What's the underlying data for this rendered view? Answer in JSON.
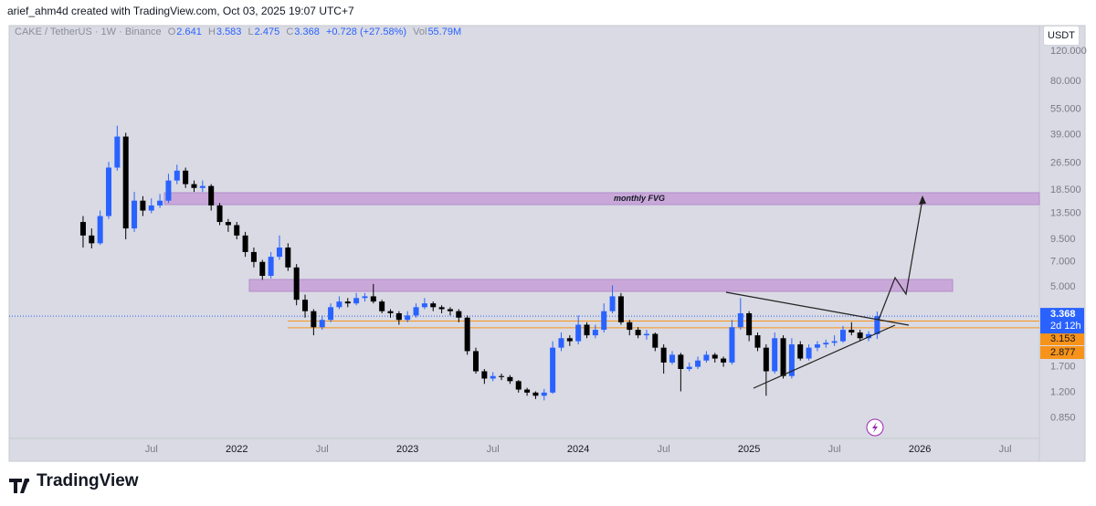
{
  "header": {
    "text": "arief_ahm4d created with TradingView.com, Oct 03, 2025 19:07 UTC+7"
  },
  "footer": {
    "brand": "TradingView"
  },
  "chart_data": {
    "type": "candlestick",
    "title": "CAKE / TetherUS · 1W · Binance",
    "currency": "USDT",
    "legend_labels": [
      "O",
      "H",
      "L",
      "C"
    ],
    "change": "+0.728 (+27.58%)",
    "volume_label": "Vol",
    "volume": "55.79M",
    "countdown": "2d 12h",
    "levels": [
      3.153,
      2.877
    ],
    "level_color": "#f7931a",
    "annotations": [
      "monthly FVG"
    ],
    "up_color": "#2962ff",
    "down_color": "#000000",
    "log_scale": true,
    "grid": false,
    "xlim": [
      2020.667,
      2026.7
    ],
    "xticks": [
      {
        "value": 2021.5,
        "label": "Jul"
      },
      2022,
      {
        "value": 2022.5,
        "label": "Jul"
      },
      2023,
      {
        "value": 2023.5,
        "label": "Jul"
      },
      2024,
      {
        "value": 2024.5,
        "label": "Jul"
      },
      2025,
      {
        "value": 2025.5,
        "label": "Jul"
      },
      2026,
      {
        "value": 2026.5,
        "label": "Jul"
      }
    ],
    "ylim": [
      0.475,
      170
    ],
    "yticks": [
      {
        "value": 120,
        "label": "120.000"
      },
      {
        "value": 80,
        "label": "80.000"
      },
      {
        "value": 55,
        "label": "55.000"
      },
      {
        "value": 39,
        "label": "39.000"
      },
      {
        "value": 26.5,
        "label": "26.500"
      },
      {
        "value": 18.5,
        "label": "18.500"
      },
      {
        "value": 13.5,
        "label": "13.500"
      },
      {
        "value": 9.5,
        "label": "9.500"
      },
      {
        "value": 7,
        "label": "7.000"
      },
      {
        "value": 5,
        "label": "5.000"
      },
      {
        "value": 1.7,
        "label": "1.700"
      },
      {
        "value": 1.2,
        "label": "1.200"
      },
      {
        "value": 0.85,
        "label": "0.850"
      }
    ],
    "x": [
      2021.1,
      2021.15,
      2021.2,
      2021.25,
      2021.3,
      2021.35,
      2021.4,
      2021.45,
      2021.5,
      2021.55,
      2021.6,
      2021.65,
      2021.7,
      2021.75,
      2021.8,
      2021.85,
      2021.9,
      2021.95,
      2022.0,
      2022.05,
      2022.1,
      2022.15,
      2022.2,
      2022.25,
      2022.3,
      2022.35,
      2022.4,
      2022.45,
      2022.5,
      2022.55,
      2022.6,
      2022.65,
      2022.7,
      2022.75,
      2022.8,
      2022.85,
      2022.9,
      2022.95,
      2023.0,
      2023.05,
      2023.1,
      2023.15,
      2023.2,
      2023.25,
      2023.3,
      2023.35,
      2023.4,
      2023.45,
      2023.5,
      2023.55,
      2023.6,
      2023.65,
      2023.7,
      2023.75,
      2023.8,
      2023.85,
      2023.9,
      2023.95,
      2024.0,
      2024.05,
      2024.1,
      2024.15,
      2024.2,
      2024.25,
      2024.3,
      2024.35,
      2024.4,
      2024.45,
      2024.5,
      2024.55,
      2024.6,
      2024.65,
      2024.7,
      2024.75,
      2024.8,
      2024.85,
      2024.9,
      2024.95,
      2025.0,
      2025.05,
      2025.1,
      2025.15,
      2025.2,
      2025.25,
      2025.3,
      2025.35,
      2025.4,
      2025.45,
      2025.5,
      2025.55,
      2025.6,
      2025.65,
      2025.7,
      2025.75
    ],
    "open": [
      12,
      10,
      9,
      13,
      25,
      38,
      11,
      16,
      14,
      15,
      16,
      21,
      24,
      20,
      19,
      19.5,
      15,
      12,
      11.5,
      10,
      8,
      7,
      5.8,
      7.5,
      8.5,
      6.5,
      4.2,
      3.6,
      2.9,
      3.2,
      3.8,
      4.1,
      4.0,
      4.3,
      4.4,
      4.1,
      3.6,
      3.5,
      3.2,
      3.4,
      3.8,
      4.0,
      3.8,
      3.7,
      3.6,
      3.3,
      2.1,
      1.6,
      1.45,
      1.5,
      1.48,
      1.4,
      1.25,
      1.2,
      1.15,
      1.2,
      2.2,
      2.5,
      2.4,
      3.0,
      2.6,
      2.8,
      3.6,
      4.4,
      3.1,
      2.8,
      2.6,
      2.65,
      2.2,
      1.8,
      2.0,
      1.65,
      1.7,
      1.85,
      2.0,
      1.9,
      1.8,
      2.9,
      3.5,
      2.6,
      2.2,
      1.6,
      2.5,
      1.5,
      2.3,
      1.9,
      2.2,
      2.3,
      2.35,
      2.4,
      2.8,
      2.7,
      2.5,
      2.641
    ],
    "high": [
      13,
      11,
      14,
      27,
      44,
      40,
      18,
      17,
      16.5,
      17.5,
      23,
      26,
      25,
      21,
      21,
      20,
      15.5,
      12.5,
      12,
      10.5,
      8.5,
      7.2,
      8,
      10,
      9,
      6.8,
      4.5,
      3.7,
      3.4,
      4.0,
      4.4,
      4.3,
      4.6,
      4.6,
      5.2,
      4.2,
      3.7,
      3.6,
      3.6,
      4.0,
      4.3,
      4.1,
      3.9,
      3.8,
      3.7,
      3.4,
      2.2,
      1.65,
      1.58,
      1.55,
      1.52,
      1.42,
      1.28,
      1.22,
      1.26,
      2.4,
      2.7,
      2.6,
      3.4,
      3.1,
      3.0,
      4.0,
      5.1,
      4.6,
      3.2,
      2.9,
      2.8,
      2.7,
      2.3,
      2.1,
      2.05,
      1.8,
      1.95,
      2.1,
      2.05,
      1.95,
      3.2,
      4.3,
      3.6,
      2.7,
      2.3,
      2.7,
      2.6,
      2.5,
      2.4,
      2.3,
      2.4,
      2.45,
      2.6,
      2.95,
      3.1,
      2.8,
      2.75,
      3.583
    ],
    "low": [
      8.5,
      8.4,
      8.8,
      12.5,
      24,
      9.5,
      10.5,
      13,
      13.5,
      14.5,
      15.5,
      20,
      19,
      18,
      18,
      14,
      11.5,
      10.5,
      9.5,
      7.5,
      6.5,
      5.5,
      5.6,
      7.2,
      6.2,
      3.9,
      3.3,
      2.6,
      2.8,
      3.1,
      3.7,
      3.8,
      3.9,
      4.1,
      4.0,
      3.5,
      3.3,
      3.0,
      3.1,
      3.3,
      3.7,
      3.6,
      3.5,
      3.4,
      3.1,
      2.0,
      1.55,
      1.35,
      1.4,
      1.42,
      1.35,
      1.2,
      1.15,
      1.1,
      1.08,
      1.18,
      2.1,
      2.25,
      2.3,
      2.5,
      2.5,
      2.7,
      3.5,
      3.0,
      2.6,
      2.5,
      2.45,
      2.1,
      1.55,
      1.75,
      1.22,
      1.6,
      1.65,
      1.8,
      1.8,
      1.7,
      1.75,
      2.8,
      2.4,
      2.1,
      1.15,
      1.55,
      1.45,
      1.45,
      1.85,
      1.85,
      2.1,
      2.2,
      2.25,
      2.35,
      2.6,
      2.4,
      2.4,
      2.475
    ],
    "close": [
      10,
      9,
      13,
      25,
      38,
      11,
      16,
      14,
      15,
      16,
      21,
      24,
      20,
      19,
      19.5,
      15,
      12,
      11.5,
      10,
      8,
      7,
      5.8,
      7.5,
      8.5,
      6.5,
      4.2,
      3.6,
      2.9,
      3.2,
      3.8,
      4.1,
      4.0,
      4.3,
      4.4,
      4.1,
      3.6,
      3.5,
      3.2,
      3.4,
      3.8,
      4.0,
      3.8,
      3.7,
      3.6,
      3.3,
      2.1,
      1.6,
      1.45,
      1.5,
      1.48,
      1.4,
      1.25,
      1.2,
      1.15,
      1.2,
      2.2,
      2.5,
      2.4,
      3.0,
      2.6,
      2.8,
      3.6,
      4.4,
      3.1,
      2.8,
      2.6,
      2.65,
      2.2,
      1.8,
      2.0,
      1.65,
      1.7,
      1.85,
      2.0,
      1.9,
      1.8,
      2.9,
      3.5,
      2.6,
      2.2,
      1.6,
      2.5,
      1.5,
      2.3,
      1.9,
      2.2,
      2.3,
      2.35,
      2.4,
      2.8,
      2.7,
      2.5,
      2.641,
      3.368
    ]
  }
}
